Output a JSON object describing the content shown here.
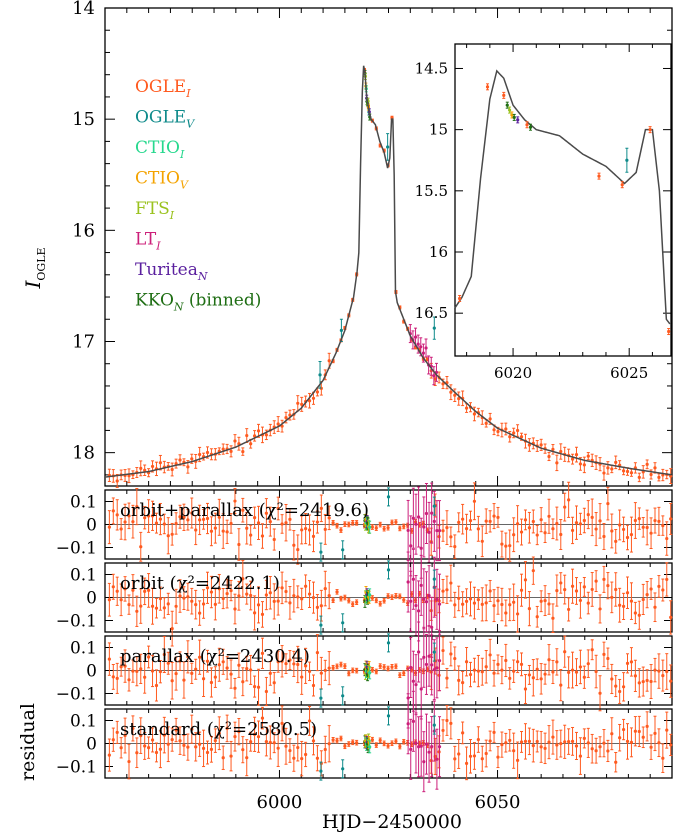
{
  "chart_data": {
    "type": "scatter",
    "xlabel": "HJD−2450000",
    "xlim": [
      5960,
      6090
    ],
    "x_ticks": [
      6000,
      6050
    ],
    "main": {
      "ylabel_main": "I",
      "ylabel_sub": "OGLE",
      "ylim": [
        18.3,
        14.0
      ],
      "y_ticks": [
        14,
        15,
        16,
        17,
        18
      ],
      "y_tick_labels": [
        "14",
        "15",
        "16",
        "17",
        "18"
      ],
      "legend": [
        {
          "name": "OGLE",
          "sub": "I",
          "color": "#ff5a1f"
        },
        {
          "name": "OGLE",
          "sub": "V",
          "color": "#0e8a8a"
        },
        {
          "name": "CTIO",
          "sub": "I",
          "color": "#27d88e"
        },
        {
          "name": "CTIO",
          "sub": "V",
          "color": "#f4a300"
        },
        {
          "name": "FTS",
          "sub": "I",
          "color": "#9ac21e"
        },
        {
          "name": "LT",
          "sub": "I",
          "color": "#cc1f7a"
        },
        {
          "name": "Turitea",
          "sub": "N",
          "color": "#5a1f9e"
        },
        {
          "name": "KKO",
          "sub": "N",
          "extra": " (binned)",
          "color": "#1f6e14"
        }
      ],
      "model_curve": [
        [
          5960,
          18.22
        ],
        [
          5970,
          18.17
        ],
        [
          5980,
          18.08
        ],
        [
          5990,
          17.95
        ],
        [
          6000,
          17.76
        ],
        [
          6005,
          17.6
        ],
        [
          6010,
          17.35
        ],
        [
          6013,
          17.1
        ],
        [
          6015,
          16.9
        ],
        [
          6017,
          16.6
        ],
        [
          6017.8,
          16.37
        ],
        [
          6018.2,
          16.2
        ],
        [
          6018.6,
          15.4
        ],
        [
          6019.0,
          14.75
        ],
        [
          6019.3,
          14.52
        ],
        [
          6019.6,
          14.58
        ],
        [
          6020,
          14.8
        ],
        [
          6020.5,
          14.92
        ],
        [
          6021,
          15.0
        ],
        [
          6022,
          15.05
        ],
        [
          6023,
          15.2
        ],
        [
          6024,
          15.3
        ],
        [
          6024.8,
          15.44
        ],
        [
          6025.3,
          15.35
        ],
        [
          6025.7,
          15.0
        ],
        [
          6026.0,
          15.0
        ],
        [
          6026.3,
          15.5
        ],
        [
          6026.6,
          16.55
        ],
        [
          6027,
          16.65
        ],
        [
          6030,
          16.95
        ],
        [
          6033,
          17.15
        ],
        [
          6036,
          17.3
        ],
        [
          6040,
          17.45
        ],
        [
          6045,
          17.63
        ],
        [
          6050,
          17.78
        ],
        [
          6060,
          17.96
        ],
        [
          6070,
          18.07
        ],
        [
          6080,
          18.14
        ],
        [
          6090,
          18.2
        ]
      ],
      "outliers": [
        {
          "x": 6009.3,
          "y": 17.3,
          "err": 0.12,
          "color": "#0e8a8a"
        },
        {
          "x": 6014.2,
          "y": 16.9,
          "err": 0.1,
          "color": "#0e8a8a"
        },
        {
          "x": 6024.8,
          "y": 15.25,
          "err": 0.12,
          "color": "#0e8a8a"
        },
        {
          "x": 6035.5,
          "y": 16.88,
          "err": 0.1,
          "color": "#0e8a8a"
        }
      ]
    },
    "inset": {
      "xlim": [
        6017.5,
        6026.8
      ],
      "ylim": [
        16.85,
        14.3
      ],
      "x_ticks": [
        6020,
        6025
      ],
      "y_ticks": [
        14.5,
        15,
        15.5,
        16,
        16.5
      ],
      "y_tick_labels": [
        "14.5",
        "15",
        "15.5",
        "16",
        "16.5"
      ],
      "points": [
        {
          "x": 6017.7,
          "y": 16.38,
          "color": "#ff5a1f"
        },
        {
          "x": 6018.9,
          "y": 14.65,
          "color": "#ff5a1f"
        },
        {
          "x": 6019.6,
          "y": 14.72,
          "color": "#ff5a1f"
        },
        {
          "x": 6019.75,
          "y": 14.8,
          "color": "#1f6e14"
        },
        {
          "x": 6019.85,
          "y": 14.84,
          "color": "#9ac21e"
        },
        {
          "x": 6019.95,
          "y": 14.88,
          "color": "#f4a300"
        },
        {
          "x": 6020.05,
          "y": 14.9,
          "color": "#1f6e14"
        },
        {
          "x": 6020.2,
          "y": 14.92,
          "color": "#5a1f9e"
        },
        {
          "x": 6020.6,
          "y": 14.96,
          "color": "#ff5a1f"
        },
        {
          "x": 6020.75,
          "y": 14.98,
          "color": "#1f6e14"
        },
        {
          "x": 6023.7,
          "y": 15.38,
          "color": "#ff5a1f"
        },
        {
          "x": 6024.7,
          "y": 15.45,
          "color": "#ff5a1f"
        },
        {
          "x": 6024.9,
          "y": 15.25,
          "color": "#0e8a8a"
        },
        {
          "x": 6025.9,
          "y": 15.0,
          "color": "#ff5a1f"
        },
        {
          "x": 6026.7,
          "y": 16.65,
          "color": "#ff5a1f"
        }
      ]
    },
    "residuals": {
      "ylabel": "residual",
      "ylim": [
        0.15,
        -0.15
      ],
      "y_ticks": [
        0.1,
        0,
        -0.1
      ],
      "y_tick_labels": [
        "0.1",
        "0",
        "−0.1"
      ],
      "panels": [
        {
          "label": "orbit+parallax (χ²=2419.6)"
        },
        {
          "label": "orbit (χ²=2422.1)"
        },
        {
          "label": "parallax (χ²=2430.4)"
        },
        {
          "label": "standard (χ²=2580.5)"
        }
      ],
      "special_points": [
        {
          "x": 6009.5,
          "y": -0.12,
          "color": "#0e8a8a"
        },
        {
          "x": 6014.5,
          "y": -0.11,
          "color": "#0e8a8a"
        },
        {
          "x": 6025.0,
          "y": 0.12,
          "color": "#0e8a8a"
        },
        {
          "x": 6035.5,
          "y": 0.08,
          "color": "#0e8a8a"
        }
      ],
      "lt_range": [
        6029.5,
        6037
      ]
    }
  }
}
